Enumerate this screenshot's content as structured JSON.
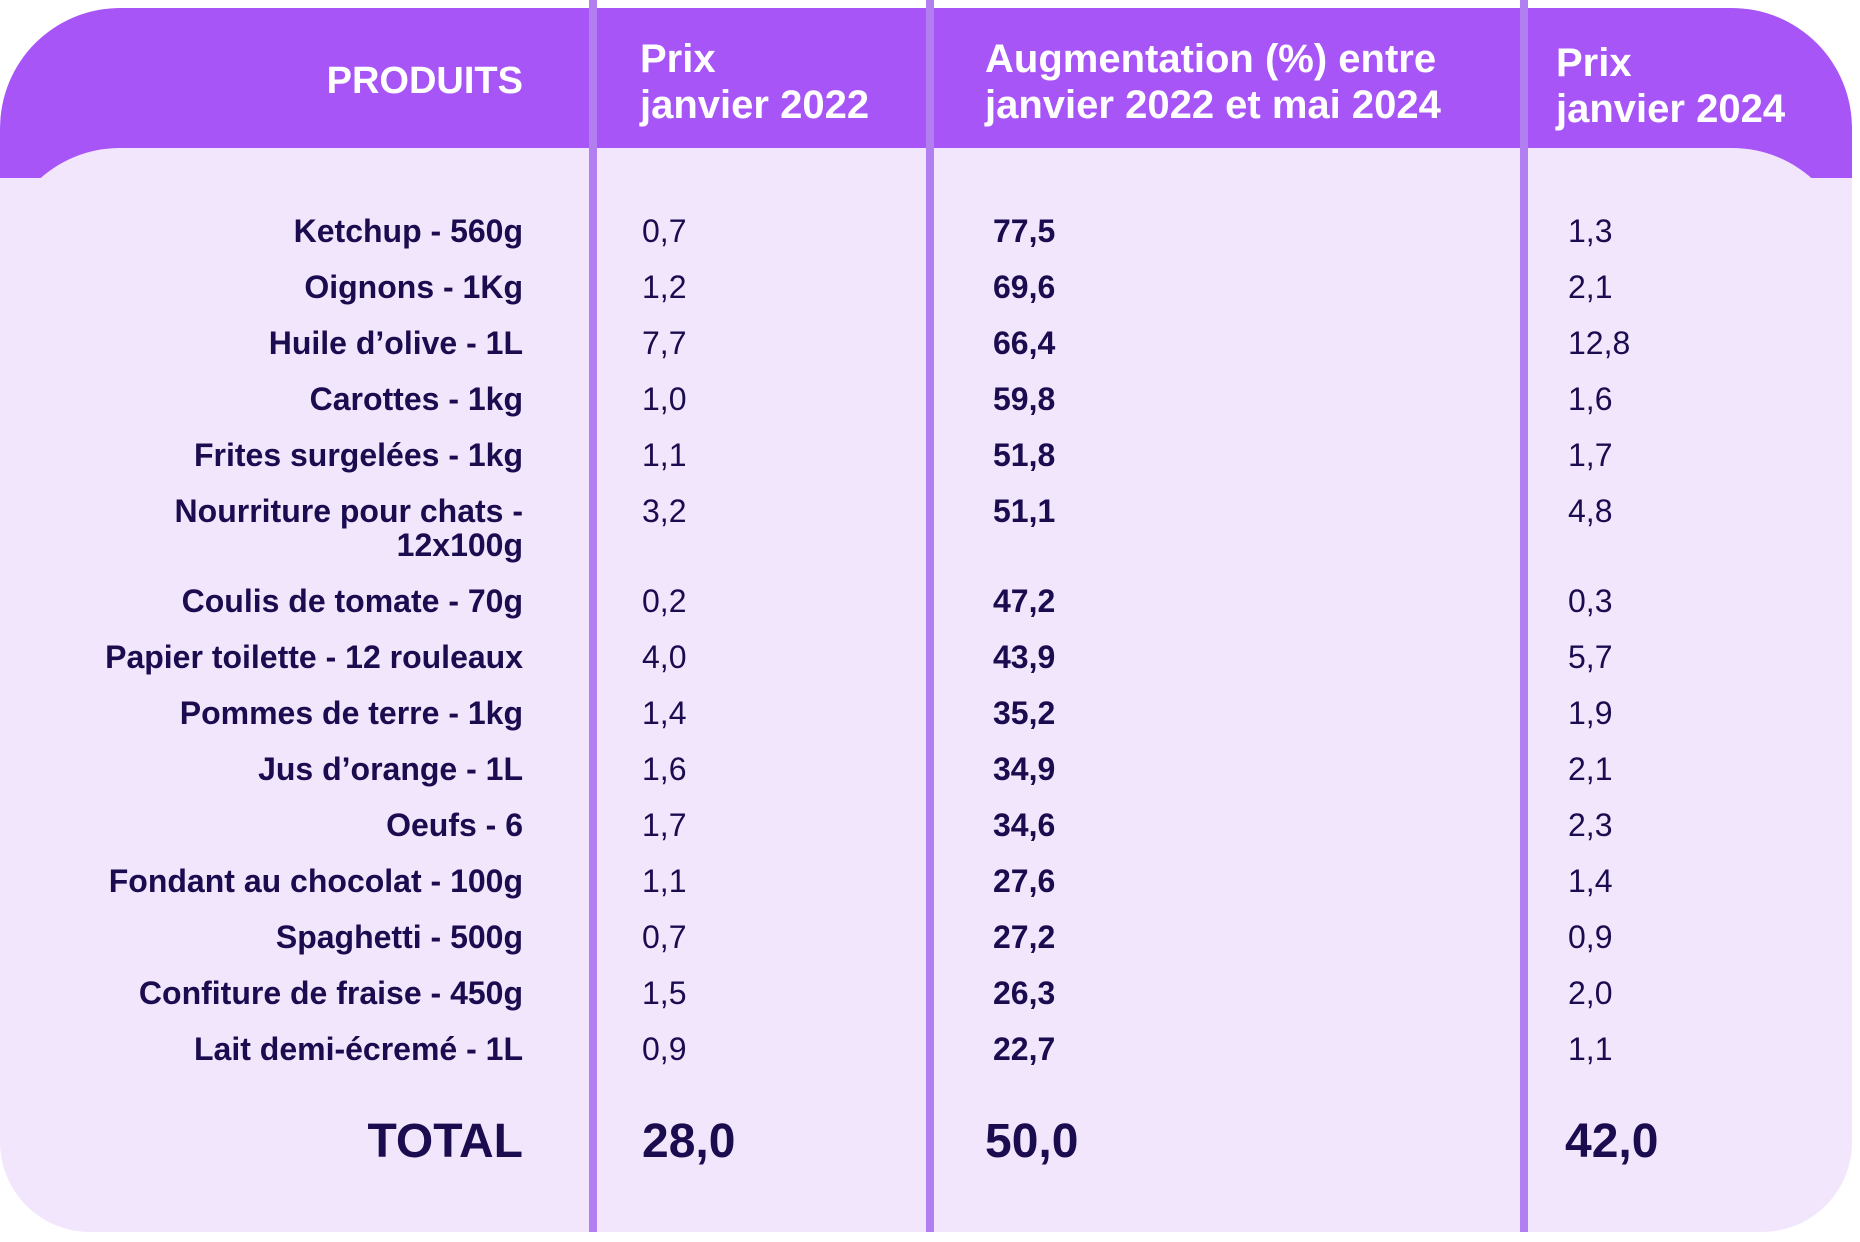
{
  "chart_data": {
    "type": "table",
    "columns": [
      "PRODUITS",
      "Prix\njanvier 2022",
      "Augmentation (%) entre\njanvier 2022 et mai 2024",
      "Prix\njanvier 2024"
    ],
    "rows": [
      [
        "Ketchup - 560g",
        "0,7",
        "77,5",
        "1,3"
      ],
      [
        "Oignons - 1Kg",
        "1,2",
        "69,6",
        "2,1"
      ],
      [
        "Huile d’olive - 1L",
        "7,7",
        "66,4",
        "12,8"
      ],
      [
        "Carottes - 1kg",
        "1,0",
        "59,8",
        "1,6"
      ],
      [
        "Frites surgelées - 1kg",
        "1,1",
        "51,8",
        "1,7"
      ],
      [
        "Nourriture pour chats -\n12x100g",
        "3,2",
        "51,1",
        "4,8"
      ],
      [
        "Coulis de tomate - 70g",
        "0,2",
        "47,2",
        "0,3"
      ],
      [
        "Papier toilette - 12 rouleaux",
        "4,0",
        "43,9",
        "5,7"
      ],
      [
        "Pommes de terre - 1kg",
        "1,4",
        "35,2",
        "1,9"
      ],
      [
        "Jus d’orange - 1L",
        "1,6",
        "34,9",
        "2,1"
      ],
      [
        "Oeufs - 6",
        "1,7",
        "34,6",
        "2,3"
      ],
      [
        "Fondant au chocolat - 100g",
        "1,1",
        "27,6",
        "1,4"
      ],
      [
        "Spaghetti - 500g",
        "0,7",
        "27,2",
        "0,9"
      ],
      [
        "Confiture de fraise - 450g",
        "1,5",
        "26,3",
        "2,0"
      ],
      [
        "Lait demi-écremé - 1L",
        "0,9",
        "22,7",
        "1,1"
      ]
    ],
    "total": [
      "TOTAL",
      "28,0",
      "50,0",
      "42,0"
    ]
  },
  "colors": {
    "header_bg": "#a855f7",
    "body_bg": "#f1e6fb",
    "divider": "#b17ff0",
    "text_dark": "#1b0b4f",
    "text_header": "#ffffff"
  }
}
